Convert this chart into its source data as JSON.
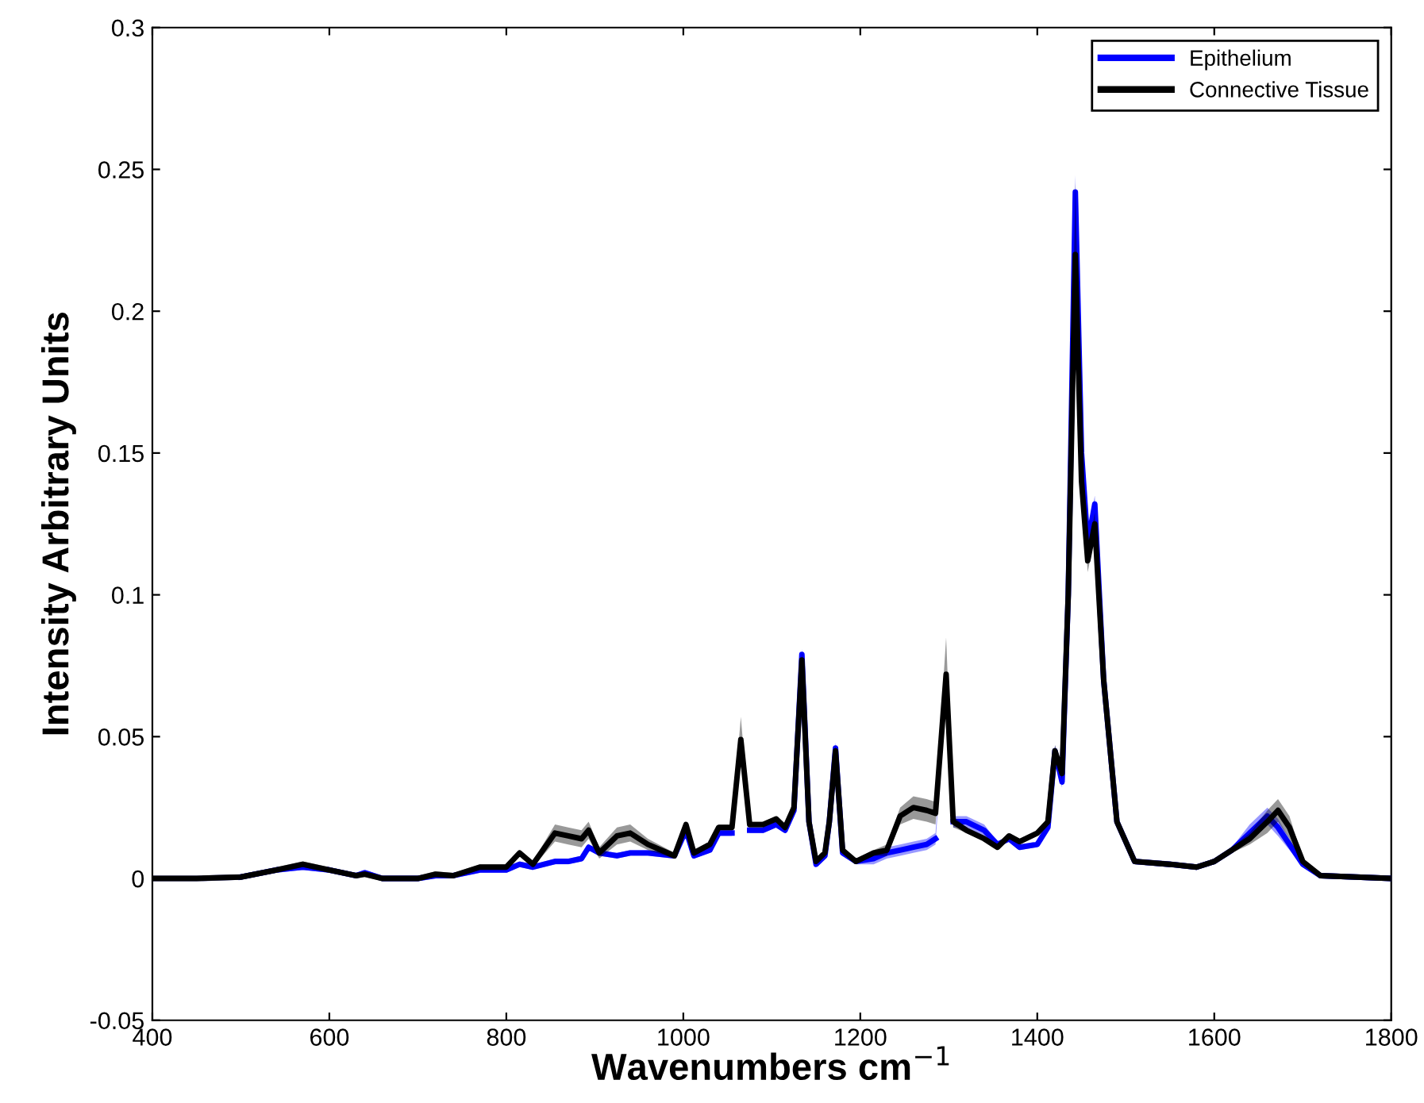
{
  "chart_data": {
    "type": "line",
    "xlabel": "Wavenumbers cm$^{−1}$",
    "ylabel": "Intensity Arbitrary Units",
    "x": [
      400,
      450,
      500,
      540,
      570,
      600,
      630,
      640,
      660,
      700,
      720,
      740,
      770,
      800,
      815,
      830,
      855,
      870,
      885,
      893,
      905,
      925,
      940,
      960,
      990,
      1003,
      1012,
      1030,
      1040,
      1055,
      1065,
      1075,
      1090,
      1105,
      1115,
      1125,
      1134,
      1142,
      1150,
      1160,
      1165,
      1172,
      1180,
      1195,
      1215,
      1230,
      1245,
      1260,
      1275,
      1285,
      1297,
      1305,
      1320,
      1340,
      1355,
      1368,
      1380,
      1400,
      1412,
      1420,
      1428,
      1435,
      1443,
      1450,
      1457,
      1465,
      1475,
      1490,
      1510,
      1550,
      1580,
      1600,
      1620,
      1640,
      1660,
      1672,
      1685,
      1700,
      1720,
      1800
    ],
    "series": [
      {
        "name": "Epithelium",
        "color": "#0000ff",
        "values": [
          null,
          null,
          0.0005,
          0.003,
          0.004,
          0.003,
          0.001,
          0.002,
          0,
          0,
          0.001,
          0.001,
          0.003,
          0.003,
          0.005,
          0.004,
          0.006,
          0.006,
          0.007,
          0.011,
          0.009,
          0.008,
          0.009,
          0.009,
          0.008,
          0.017,
          0.008,
          0.01,
          0.016,
          0.016,
          null,
          0.017,
          0.017,
          0.019,
          0.017,
          0.024,
          0.079,
          0.02,
          0.005,
          0.008,
          0.02,
          0.046,
          0.009,
          0.006,
          0.007,
          0.009,
          0.01,
          0.011,
          0.012,
          0.014,
          null,
          0.02,
          0.02,
          0.017,
          0.012,
          0.014,
          0.011,
          0.012,
          0.018,
          0.045,
          0.034,
          0.1,
          0.242,
          0.15,
          0.118,
          0.132,
          0.07,
          0.02,
          0.006,
          0.005,
          0.004,
          0.006,
          0.01,
          0.016,
          0.022,
          0.018,
          0.012,
          0.005,
          0.001,
          0
        ],
        "lower": [
          -0.001,
          -0.001,
          -0.0005,
          0.002,
          0.003,
          0.002,
          0,
          0.001,
          -0.001,
          -0.001,
          0,
          0,
          0.002,
          0.002,
          0.004,
          0.003,
          0.005,
          0.005,
          0.006,
          0.01,
          0.008,
          0.007,
          0.008,
          0.008,
          0.007,
          0.016,
          0.007,
          0.009,
          0.015,
          0.015,
          0.045,
          0.016,
          0.016,
          0.018,
          0.016,
          0.023,
          0.077,
          0.019,
          0.004,
          0.007,
          0.019,
          0.044,
          0.008,
          0.005,
          0.005,
          0.007,
          0.008,
          0.009,
          0.01,
          0.012,
          0.068,
          0.018,
          0.018,
          0.015,
          0.011,
          0.013,
          0.01,
          0.011,
          0.017,
          0.043,
          0.032,
          0.097,
          0.236,
          0.146,
          0.115,
          0.129,
          0.068,
          0.019,
          0.005,
          0.004,
          0.003,
          0.005,
          0.009,
          0.013,
          0.019,
          0.015,
          0.01,
          0.004,
          0,
          -0.001
        ],
        "upper": [
          0.001,
          0.001,
          0.0015,
          0.004,
          0.005,
          0.004,
          0.002,
          0.003,
          0.001,
          0.001,
          0.002,
          0.002,
          0.004,
          0.004,
          0.006,
          0.005,
          0.007,
          0.007,
          0.008,
          0.012,
          0.01,
          0.009,
          0.01,
          0.01,
          0.009,
          0.018,
          0.009,
          0.011,
          0.017,
          0.017,
          0.049,
          0.018,
          0.018,
          0.02,
          0.018,
          0.025,
          0.081,
          0.021,
          0.006,
          0.009,
          0.021,
          0.048,
          0.01,
          0.007,
          0.009,
          0.011,
          0.012,
          0.013,
          0.014,
          0.016,
          0.072,
          0.022,
          0.022,
          0.019,
          0.013,
          0.015,
          0.012,
          0.013,
          0.019,
          0.047,
          0.036,
          0.103,
          0.248,
          0.154,
          0.121,
          0.135,
          0.072,
          0.021,
          0.007,
          0.006,
          0.005,
          0.007,
          0.011,
          0.019,
          0.025,
          0.021,
          0.014,
          0.006,
          0.002,
          0.001
        ]
      },
      {
        "name": "Connective Tissue",
        "color": "#000000",
        "values": [
          0,
          0,
          0.0005,
          0.003,
          0.005,
          0.003,
          0.001,
          0.0015,
          0,
          0,
          0.0015,
          0.001,
          0.004,
          0.004,
          0.009,
          0.005,
          0.016,
          0.015,
          0.014,
          0.017,
          0.009,
          0.015,
          0.016,
          0.012,
          0.008,
          0.019,
          0.009,
          0.012,
          0.018,
          0.018,
          0.049,
          0.019,
          0.019,
          0.021,
          0.018,
          0.025,
          0.077,
          0.02,
          0.006,
          0.009,
          0.02,
          0.045,
          0.01,
          0.006,
          0.009,
          0.01,
          0.022,
          0.025,
          0.024,
          0.023,
          0.072,
          0.02,
          0.017,
          0.014,
          0.011,
          0.015,
          0.013,
          0.016,
          0.02,
          0.045,
          0.037,
          0.1,
          0.22,
          0.14,
          0.112,
          0.125,
          0.07,
          0.02,
          0.006,
          0.005,
          0.004,
          0.006,
          0.01,
          0.014,
          0.02,
          0.024,
          0.018,
          0.006,
          0.001,
          0
        ],
        "lower": [
          -0.001,
          -0.001,
          -0.0005,
          0.002,
          0.004,
          0.002,
          0,
          0.0005,
          -0.001,
          -0.001,
          0.0005,
          0,
          0.003,
          0.003,
          0.008,
          0.004,
          0.013,
          0.012,
          0.011,
          0.014,
          0.007,
          0.012,
          0.013,
          0.01,
          0.007,
          0.018,
          0.008,
          0.011,
          0.017,
          0.017,
          0.045,
          0.018,
          0.018,
          0.02,
          0.017,
          0.024,
          0.074,
          0.019,
          0.005,
          0.008,
          0.019,
          0.043,
          0.009,
          0.005,
          0.008,
          0.008,
          0.019,
          0.021,
          0.02,
          0.019,
          0.068,
          0.018,
          0.016,
          0.013,
          0.01,
          0.014,
          0.012,
          0.015,
          0.019,
          0.043,
          0.035,
          0.096,
          0.212,
          0.135,
          0.108,
          0.121,
          0.067,
          0.019,
          0.005,
          0.004,
          0.003,
          0.005,
          0.009,
          0.012,
          0.016,
          0.02,
          0.014,
          0.005,
          0,
          -0.001
        ],
        "upper": [
          0.001,
          0.001,
          0.0015,
          0.004,
          0.006,
          0.004,
          0.002,
          0.0025,
          0.001,
          0.001,
          0.0025,
          0.002,
          0.005,
          0.005,
          0.01,
          0.006,
          0.019,
          0.018,
          0.017,
          0.02,
          0.011,
          0.018,
          0.019,
          0.014,
          0.009,
          0.02,
          0.01,
          0.013,
          0.019,
          0.019,
          0.057,
          0.02,
          0.02,
          0.022,
          0.019,
          0.026,
          0.08,
          0.021,
          0.007,
          0.01,
          0.021,
          0.047,
          0.011,
          0.007,
          0.01,
          0.012,
          0.025,
          0.029,
          0.028,
          0.027,
          0.085,
          0.022,
          0.018,
          0.015,
          0.012,
          0.016,
          0.014,
          0.017,
          0.021,
          0.047,
          0.039,
          0.104,
          0.245,
          0.145,
          0.116,
          0.129,
          0.073,
          0.021,
          0.007,
          0.006,
          0.005,
          0.007,
          0.011,
          0.016,
          0.024,
          0.028,
          0.022,
          0.007,
          0.002,
          0.001
        ]
      }
    ],
    "xlim": [
      400,
      1800
    ],
    "xticks": [
      400,
      600,
      800,
      1000,
      1200,
      1400,
      1600,
      1800
    ],
    "ylim": [
      -0.05,
      0.3
    ],
    "yticks": [
      -0.05,
      0,
      0.05,
      0.1,
      0.15,
      0.2,
      0.25,
      0.3
    ],
    "legend": "top right",
    "grid": false,
    "line_style": "solid",
    "marker": "none"
  }
}
